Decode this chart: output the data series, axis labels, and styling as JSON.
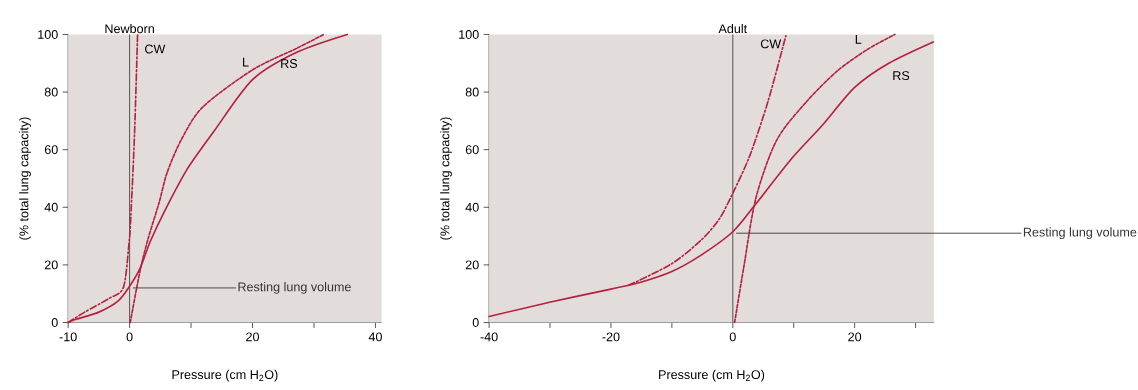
{
  "chart_data": [
    {
      "type": "line",
      "title": "Newborn",
      "xlabel": "Pressure (cm H$_{2}$O)",
      "ylabel": "(% total lung capacity)",
      "xlim": [
        -10,
        41
      ],
      "ylim": [
        0,
        100
      ],
      "xticks": [
        -10,
        0,
        {
          "value": 10,
          "label": null
        },
        20,
        {
          "value": 30,
          "label": null
        },
        40
      ],
      "yticks": [
        0,
        20,
        40,
        60,
        80,
        100
      ],
      "ref_lines": [
        {
          "axis": "x",
          "value": 0,
          "color": "#404040"
        }
      ],
      "annotations": [
        {
          "text": "Resting lung volume",
          "x": 0,
          "y": 12
        }
      ],
      "series": [
        {
          "name": "CW",
          "color": "#b5213e",
          "line_style": "dashdot",
          "x": [
            -10,
            -7.3,
            -3.3,
            -1,
            -0.1,
            0.2,
            0.8,
            1.3
          ],
          "values": [
            0,
            3.6,
            8.4,
            12.2,
            27.4,
            36.8,
            65.3,
            100
          ]
        },
        {
          "name": "L",
          "color": "#b5213e",
          "line_style": "dashed",
          "x": [
            0.1,
            1.7,
            3,
            4.8,
            6.1,
            8.4,
            11.9,
            20,
            27.2,
            31.6
          ],
          "values": [
            0,
            17.9,
            29,
            41.6,
            52,
            63.4,
            74.8,
            87.7,
            95.2,
            100
          ]
        },
        {
          "name": "RS",
          "color": "#b5213e",
          "line_style": "solid",
          "x": [
            -10,
            -8.6,
            -5,
            -1.9,
            0,
            1.7,
            3.4,
            5.7,
            9.3,
            13.7,
            20,
            27.2,
            35.4
          ],
          "values": [
            0,
            1.2,
            3.6,
            7.4,
            12.6,
            18.8,
            28.3,
            38.7,
            53,
            66.3,
            84.3,
            93.8,
            100
          ]
        }
      ]
    },
    {
      "type": "line",
      "title": "Adult",
      "xlabel": "Pressure (cm H$_{2}$O)",
      "ylabel": "(% total lung capacity)",
      "xlim": [
        -40,
        33
      ],
      "ylim": [
        0,
        100
      ],
      "xticks": [
        -40,
        {
          "value": -30,
          "label": null
        },
        -20,
        {
          "value": -10,
          "label": null
        },
        0,
        {
          "value": 10,
          "label": null
        },
        20,
        {
          "value": 30,
          "label": null
        }
      ],
      "yticks": [
        0,
        20,
        40,
        60,
        80,
        100
      ],
      "ref_lines": [
        {
          "axis": "x",
          "value": 0,
          "color": "#404040"
        }
      ],
      "annotations": [
        {
          "text": "Resting lung volume",
          "x": 0,
          "y": 31
        }
      ],
      "series": [
        {
          "name": "CW",
          "color": "#b5213e",
          "line_style": "dashdot",
          "x": [
            -17.1,
            -10.1,
            -5.2,
            -2.2,
            0,
            2.8,
            5.8,
            8.7
          ],
          "values": [
            12.9,
            20.3,
            28.6,
            36,
            44.9,
            58,
            76.9,
            99.5
          ]
        },
        {
          "name": "L",
          "color": "#b5213e",
          "line_style": "dashed",
          "x": [
            0.3,
            1.8,
            3.8,
            7.2,
            12.2,
            17.2,
            22.1,
            26.6
          ],
          "values": [
            0,
            19.2,
            43.3,
            63.3,
            76.9,
            87.4,
            94.8,
            100
          ]
        },
        {
          "name": "RS",
          "color": "#b5213e",
          "line_style": "solid",
          "x": [
            -40,
            -29.9,
            -20,
            -15.1,
            -10.1,
            -5.2,
            0,
            3.8,
            9.7,
            14.7,
            20,
            25.6,
            32.9
          ],
          "values": [
            2.1,
            7.1,
            11.6,
            14,
            17.6,
            23.4,
            31.5,
            41.2,
            57,
            68.5,
            81.6,
            90,
            97.4
          ]
        }
      ]
    }
  ]
}
